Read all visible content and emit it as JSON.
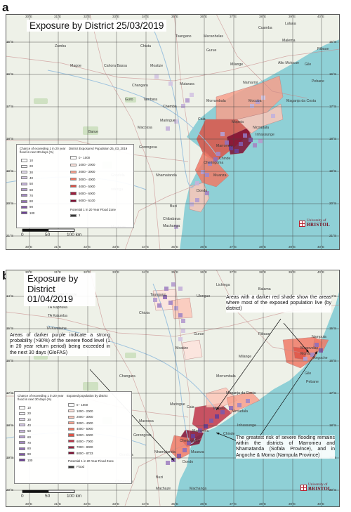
{
  "panel_a": {
    "label": "a",
    "title": "Exposure by District 25/03/2019",
    "lon_ticks": [
      "30°E",
      "31°E",
      "32°E",
      "33°E",
      "34°E",
      "35°E",
      "36°E",
      "37°E",
      "38°E",
      "39°E",
      "40°E"
    ],
    "lat_ticks": [
      "15°S",
      "16°S",
      "17°S",
      "18°S",
      "19°S",
      "20°S",
      "21°S"
    ],
    "places": [
      "Mecanhelas",
      "Cuamba",
      "Lalaua",
      "Maravia",
      "Zumbu",
      "Chiuta",
      "Tsangano",
      "Gurue",
      "Malema",
      "Ribaue",
      "Magoe",
      "Cahora Bassa",
      "Moatize",
      "Milange",
      "Alto Molocue",
      "Gile",
      "Changara",
      "Mutarara",
      "Morrumbala",
      "Namarroi",
      "Pebane",
      "Guro",
      "Tambara",
      "Chemba",
      "Mocuba",
      "Maganja da Costa",
      "Barue",
      "Maringue",
      "Caia",
      "Mopeia",
      "Nicoadala",
      "Macossa",
      "Inhassunge",
      "Gorongosa",
      "Marromeu",
      "Chinde",
      "Cheringoma",
      "Gondola",
      "Nhamatanda",
      "Muanza",
      "ndenga",
      "Dondo",
      "Buzi",
      "Chibabava",
      "Machaze",
      "Machanga"
    ],
    "legend_flood_title": "Chance of exceeding 1 in 20 year flood in next 30 days (%)",
    "legend_flood_values": [
      "10",
      "20",
      "30",
      "40",
      "50",
      "60",
      "70",
      "80",
      "90",
      "100"
    ],
    "legend_pop_title": "District Exposured Population 25_03_2019",
    "legend_pop_classes": [
      "0 - 1000",
      "1000 - 2000",
      "2000 - 3000",
      "3000 - 4000",
      "4000 - 5000",
      "5000 - 6000",
      "6000 - 6100"
    ],
    "legend_zone_title": "Potential 1 in 20 Year Flood Zone",
    "legend_zone_item": "1",
    "scale_labels": [
      "0",
      "50",
      "100 km"
    ]
  },
  "panel_b": {
    "label": "b",
    "title_lines": [
      "Exposure by",
      "District",
      "01/04/2019"
    ],
    "lon_ticks": [
      "30°E",
      "31°E",
      "32°E",
      "33°E",
      "34°E",
      "35°E",
      "36°E",
      "37°E",
      "38°E",
      "39°E",
      "40°E"
    ],
    "lat_ticks": [
      "14°S",
      "15°S",
      "16°S",
      "17°S",
      "18°S",
      "19°S",
      "20°S"
    ],
    "places": [
      "Lichinga",
      "Balama",
      "TA Mkanda",
      "TA Dzoole",
      "TA Kaphuka",
      "TA Kalumba",
      "TA Kwataine",
      "Tsangano",
      "Ulongue",
      "Cuamba",
      "Lalaua",
      "Chiuta",
      "Chifunde",
      "Gurue",
      "Moatize",
      "Nampula",
      "Ribaue",
      "Mogovolas",
      "Angoche",
      "Moma",
      "Milange",
      "Gile",
      "Pebane",
      "Changara",
      "Morrumbala",
      "Maganja da Costa",
      "Maringue",
      "Caia",
      "Mopeia",
      "Nicoadala",
      "Macossa",
      "Inhassunge",
      "Gorongosa",
      "Marromeu",
      "Chinde",
      "Cheringoma",
      "Gondola",
      "Nhamatanda",
      "Muanza",
      "Dondo",
      "Buzi",
      "Chibabava",
      "Machaze",
      "Machanga"
    ],
    "annot_top": "Areas with a darker red shade show the areas where most of the exposed population live (by district)",
    "annot_left": "Areas of darker purple indicate a strong probability (>90%) of the severe flood level (1 in 20 year return period) being exceeded in the next 30 days (GloFAS)",
    "annot_bottom": "The greatest risk of severe flooding remains within the districts of Marromeu and Nhamatanda (Sofala Province), and in Angoche & Moma (Nampula Province)",
    "legend_flood_title": "Chance of exceeding 1 in 20 year flood in next 30 days (%)",
    "legend_flood_values": [
      "10",
      "20",
      "30",
      "40",
      "50",
      "60",
      "70",
      "80",
      "90",
      "100"
    ],
    "legend_pop_title": "Exposed population by district",
    "legend_pop_classes": [
      "0 - 1000",
      "1000 - 2000",
      "2000 - 3000",
      "3000 - 4000",
      "4000 - 5000",
      "5000 - 6000",
      "6000 - 7000",
      "7000 - 8000",
      "8000 - 8733"
    ],
    "legend_zone_title": "Potential 1 in 20 Year Flood Zone",
    "legend_zone_item": "Flood",
    "scale_labels": [
      "0",
      "50",
      "100 km"
    ]
  },
  "logo": {
    "line1": "University of",
    "line2": "BRISTOL"
  },
  "colors": {
    "ocean": "#8fd0d6",
    "land": "#eef1e8",
    "road": "#c98b8b",
    "river": "#9ec3de",
    "grid": "#444444",
    "flood_ramp": [
      "#ffffff",
      "#f1eef6",
      "#e2d9ec",
      "#d4c6e3",
      "#c5b3da",
      "#b59ed0",
      "#a488c4",
      "#9370b6",
      "#8258a7",
      "#6b3f93"
    ],
    "pop_ramp": [
      "#ffffff",
      "#fde3dc",
      "#fbc7b9",
      "#f7a08c",
      "#f07a66",
      "#dd5347",
      "#c0364a",
      "#a0203f",
      "#7f0d31"
    ]
  }
}
